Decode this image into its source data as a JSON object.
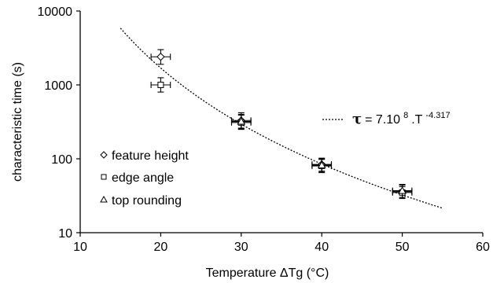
{
  "chart_data": {
    "type": "scatter",
    "xlabel": "Temperature ΔTg (°C)",
    "ylabel": "characteristic time (s)",
    "xlim": [
      10,
      60
    ],
    "ylim": [
      10,
      10000
    ],
    "yscale": "log",
    "x_ticks": [
      "10",
      "20",
      "30",
      "40",
      "50",
      "60"
    ],
    "y_ticks": [
      "10",
      "100",
      "1000",
      "10000"
    ],
    "grid": false,
    "legend_position": "left",
    "series": [
      {
        "name": "feature height",
        "marker": "diamond",
        "points": [
          {
            "x": 20,
            "y": 2400,
            "xerr": 1.2,
            "yerr_low": 1900,
            "yerr_high": 3000
          },
          {
            "x": 30,
            "y": 330,
            "xerr": 1.2,
            "yerr_low": 260,
            "yerr_high": 420
          },
          {
            "x": 40,
            "y": 84,
            "xerr": 1.2,
            "yerr_low": 68,
            "yerr_high": 102
          },
          {
            "x": 50,
            "y": 36,
            "xerr": 1.2,
            "yerr_low": 30,
            "yerr_high": 44
          }
        ]
      },
      {
        "name": "edge angle",
        "marker": "square",
        "points": [
          {
            "x": 20,
            "y": 1000,
            "xerr": 1.2,
            "yerr_low": 800,
            "yerr_high": 1250
          },
          {
            "x": 30,
            "y": 310,
            "xerr": 1.2,
            "yerr_low": 250,
            "yerr_high": 390
          },
          {
            "x": 40,
            "y": 80,
            "xerr": 1.2,
            "yerr_low": 65,
            "yerr_high": 98
          },
          {
            "x": 50,
            "y": 35,
            "xerr": 1.2,
            "yerr_low": 29,
            "yerr_high": 42
          }
        ]
      },
      {
        "name": "top rounding",
        "marker": "triangle",
        "points": [
          {
            "x": 30,
            "y": 320,
            "xerr": 1.2,
            "yerr_low": 255,
            "yerr_high": 400
          },
          {
            "x": 40,
            "y": 82,
            "xerr": 1.2,
            "yerr_low": 66,
            "yerr_high": 100
          },
          {
            "x": 50,
            "y": 37,
            "xerr": 1.2,
            "yerr_low": 30,
            "yerr_high": 45
          }
        ]
      }
    ],
    "fit": {
      "style": "dotted",
      "coefficient": 700000000,
      "exponent": -4.317,
      "x_range": [
        15,
        55
      ]
    },
    "annotation": {
      "tau": "τ",
      "equals": " = 7.10",
      "exp1": "8",
      "mid": ".T",
      "exp2": "-4.317"
    }
  }
}
